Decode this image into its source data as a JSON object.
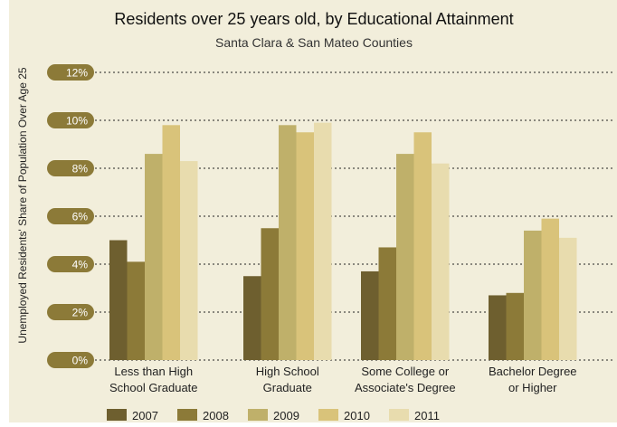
{
  "chart_data": {
    "type": "bar",
    "title": "Residents over 25 years old, by Educational Attainment",
    "subtitle": "Santa Clara  & San Mateo Counties",
    "ylabel": "Unemployed Residents' Share of Population Over Age 25",
    "xlabel": "",
    "ylim": [
      0,
      12
    ],
    "yticks": [
      "0%",
      "2%",
      "4%",
      "6%",
      "8%",
      "10%",
      "12%"
    ],
    "grid": true,
    "legend_position": "bottom",
    "categories": [
      [
        "Less than High",
        "School Graduate"
      ],
      [
        "High School",
        "Graduate"
      ],
      [
        "Some College or",
        "Associate's Degree"
      ],
      [
        "Bachelor Degree",
        "or Higher"
      ]
    ],
    "series": [
      {
        "name": "2007",
        "color": "#6e5f2f",
        "values": [
          5.0,
          3.5,
          3.7,
          2.7
        ]
      },
      {
        "name": "2008",
        "color": "#8c7a38",
        "values": [
          4.1,
          5.5,
          4.7,
          2.8
        ]
      },
      {
        "name": "2009",
        "color": "#bfb06a",
        "values": [
          8.6,
          9.8,
          8.6,
          5.4
        ]
      },
      {
        "name": "2010",
        "color": "#d9c37a",
        "values": [
          9.8,
          9.5,
          9.5,
          5.9
        ]
      },
      {
        "name": "2011",
        "color": "#e8dcae",
        "values": [
          8.3,
          9.9,
          8.2,
          5.1
        ]
      }
    ]
  },
  "colors": {
    "background": "#f2eedb",
    "tick_pill": "#8c7a38",
    "grid": "#222222",
    "text": "#222222"
  }
}
